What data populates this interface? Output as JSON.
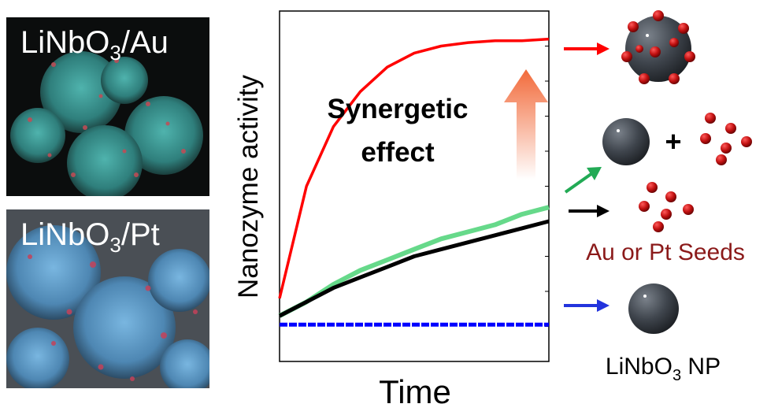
{
  "panels": [
    {
      "label_pre": "LiNbO",
      "label_sub": "3",
      "label_post": "/Au"
    },
    {
      "label_pre": "LiNbO",
      "label_sub": "3",
      "label_post": "/Pt"
    }
  ],
  "chart_data": {
    "type": "line",
    "xlabel": "Time",
    "ylabel": "Nanozyme  activity",
    "annotation": [
      "Synergetic",
      "effect"
    ],
    "grid": false,
    "xlim": [
      0,
      1
    ],
    "ylim": [
      0,
      1
    ],
    "x": [
      0,
      0.1,
      0.2,
      0.3,
      0.4,
      0.5,
      0.6,
      0.7,
      0.8,
      0.9,
      1.0
    ],
    "series": [
      {
        "color": "#ff0000",
        "values": [
          0.18,
          0.5,
          0.67,
          0.77,
          0.84,
          0.88,
          0.9,
          0.91,
          0.915,
          0.915,
          0.92
        ]
      },
      {
        "color": "#66d98a",
        "values": [
          0.13,
          0.17,
          0.22,
          0.26,
          0.29,
          0.32,
          0.35,
          0.37,
          0.39,
          0.42,
          0.44
        ]
      },
      {
        "color": "#000000",
        "values": [
          0.13,
          0.17,
          0.21,
          0.24,
          0.27,
          0.3,
          0.32,
          0.34,
          0.36,
          0.38,
          0.4
        ]
      },
      {
        "color": "#0000ff",
        "values": [
          0.105,
          0.105,
          0.105,
          0.105,
          0.105,
          0.105,
          0.105,
          0.105,
          0.105,
          0.105,
          0.105
        ]
      }
    ]
  },
  "legend_labels": {
    "seeds": "Au or Pt Seeds",
    "np_pre": "LiNbO",
    "np_sub": "3",
    "np_post": " NP",
    "plus": "+"
  },
  "colors": {
    "arrow_red": "#ff0000",
    "arrow_green": "#22aa55",
    "arrow_black": "#000000",
    "arrow_blue": "#2233dd",
    "seed_dark_red": "#8b1a1a",
    "particle_red": "#cc1111",
    "sphere_dark": "#3a3f46"
  }
}
